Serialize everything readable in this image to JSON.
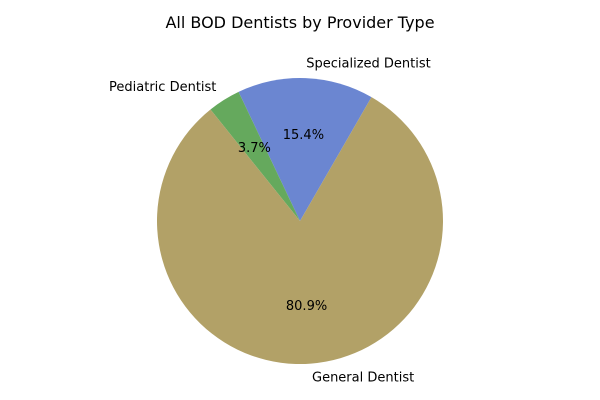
{
  "chart_data": {
    "type": "pie",
    "title": "All BOD Dentists by Provider Type",
    "categories": [
      "Specialized Dentist",
      "Pediatric Dentist",
      "General Dentist"
    ],
    "values": [
      15.4,
      3.7,
      80.9
    ],
    "percent_labels": [
      "15.4%",
      "3.7%",
      "80.9%"
    ],
    "colors": [
      "#6b86d1",
      "#65a95d",
      "#b2a167"
    ],
    "legend": "none"
  }
}
